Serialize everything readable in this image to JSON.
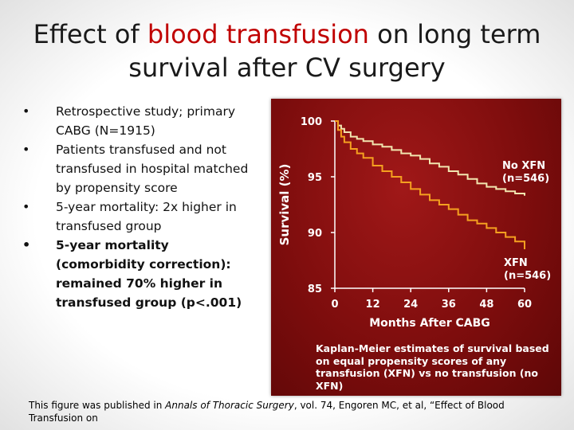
{
  "slide": {
    "title_part1": "Effect of ",
    "title_highlight": "blood transfusion",
    "title_part2": " on long term survival after CV surgery",
    "highlight_color": "#c00000",
    "bullets": [
      "Retrospective study; primary CABG (N=1915)",
      "Patients transfused and not transfused in hospital matched by propensity score",
      "5-year mortality: 2x higher in transfused group",
      "5-year mortality (comorbidity correction): remained 70% higher in transfused group (p<.001)"
    ],
    "citation_before": "This figure was published in ",
    "citation_journal": "Annals of Thoracic Surgery",
    "citation_after": ", vol. 74, Engoren MC, et al, “Effect of Blood Transfusion o",
    "citation_cutoff": "n"
  },
  "figure": {
    "caption": "Kaplan-Meier estimates of survival based on equal propensity scores of any transfusion (XFN) vs no transfusion (no XFN)"
  },
  "chart_data": {
    "type": "line",
    "title": "",
    "xlabel": "Months After CABG",
    "ylabel": "Survival (%)",
    "xlim": [
      0,
      60
    ],
    "ylim": [
      85,
      100
    ],
    "x_ticks": [
      "0",
      "12",
      "24",
      "36",
      "48",
      "60"
    ],
    "y_ticks": [
      "100",
      "95",
      "90",
      "85"
    ],
    "series": [
      {
        "name": "No XFN",
        "label_line1": "No XFN",
        "label_line2": "(n=546)",
        "color": "#f2e6b0",
        "x": [
          0,
          1,
          2,
          3,
          5,
          7,
          9,
          12,
          15,
          18,
          21,
          24,
          27,
          30,
          33,
          36,
          39,
          42,
          45,
          48,
          51,
          54,
          57,
          60
        ],
        "y": [
          100,
          99.6,
          99.3,
          99.0,
          98.6,
          98.4,
          98.2,
          97.9,
          97.7,
          97.4,
          97.1,
          96.9,
          96.6,
          96.2,
          95.9,
          95.5,
          95.2,
          94.8,
          94.4,
          94.1,
          93.9,
          93.7,
          93.5,
          93.3
        ]
      },
      {
        "name": "XFN",
        "label_line1": "XFN",
        "label_line2": "(n=546)",
        "color": "#f5a020",
        "x": [
          0,
          1,
          2,
          3,
          5,
          7,
          9,
          12,
          15,
          18,
          21,
          24,
          27,
          30,
          33,
          36,
          39,
          42,
          45,
          48,
          51,
          54,
          57,
          60
        ],
        "y": [
          100,
          99.2,
          98.6,
          98.1,
          97.5,
          97.1,
          96.7,
          96.0,
          95.5,
          95.0,
          94.5,
          93.9,
          93.4,
          92.9,
          92.5,
          92.1,
          91.6,
          91.1,
          90.8,
          90.4,
          90.0,
          89.6,
          89.2,
          88.5
        ]
      }
    ]
  }
}
